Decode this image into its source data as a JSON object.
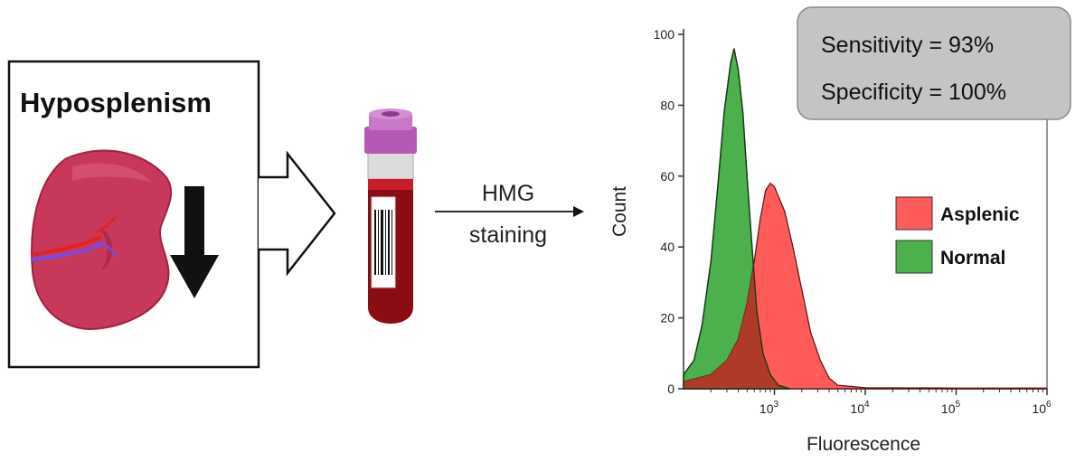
{
  "panel": {
    "title": "Hyposplenism"
  },
  "process": {
    "label_line1": "HMG",
    "label_line2": "staining"
  },
  "stats": {
    "sensitivity": "Sensitivity = 93%",
    "specificity": "Specificity = 100%"
  },
  "colors": {
    "asplenic": "#ff5b5b",
    "normal": "#4cb04c",
    "overlap": "#b03a2a",
    "spleen": "#c8385a",
    "tube_cap": "#b45ab4",
    "blood": "#8b0d14"
  },
  "chart_data": {
    "type": "area",
    "xlabel": "Fluorescence",
    "ylabel": "Count",
    "ylim": [
      0,
      100
    ],
    "yticks": [
      "0",
      "20",
      "40",
      "60",
      "80",
      "100"
    ],
    "xticks": [
      {
        "value": 1000,
        "base": "10",
        "exp": "3"
      },
      {
        "value": 10000,
        "base": "10",
        "exp": "4"
      },
      {
        "value": 100000,
        "base": "10",
        "exp": "5"
      },
      {
        "value": 1000000,
        "base": "10",
        "exp": "6"
      }
    ],
    "xlim_log10": [
      2.0,
      6.0
    ],
    "x_scale": "log",
    "legend_position": "right",
    "series": [
      {
        "name": "Asplenic",
        "color": "#ff5b5b",
        "points": [
          [
            100,
            2
          ],
          [
            200,
            4
          ],
          [
            300,
            8
          ],
          [
            400,
            14
          ],
          [
            500,
            24
          ],
          [
            600,
            36
          ],
          [
            700,
            48
          ],
          [
            800,
            56
          ],
          [
            900,
            58
          ],
          [
            1000,
            57
          ],
          [
            1300,
            50
          ],
          [
            1600,
            40
          ],
          [
            2000,
            28
          ],
          [
            2500,
            16
          ],
          [
            3200,
            8
          ],
          [
            4000,
            3
          ],
          [
            5000,
            1
          ],
          [
            10000,
            0.3
          ],
          [
            100000,
            0.2
          ],
          [
            1000000,
            0.2
          ]
        ]
      },
      {
        "name": "Normal",
        "color": "#4cb04c",
        "points": [
          [
            100,
            4
          ],
          [
            130,
            8
          ],
          [
            160,
            18
          ],
          [
            200,
            36
          ],
          [
            240,
            58
          ],
          [
            280,
            78
          ],
          [
            330,
            92
          ],
          [
            360,
            96
          ],
          [
            400,
            90
          ],
          [
            450,
            78
          ],
          [
            500,
            60
          ],
          [
            560,
            42
          ],
          [
            640,
            22
          ],
          [
            750,
            10
          ],
          [
            900,
            4
          ],
          [
            1100,
            1
          ],
          [
            1500,
            0
          ]
        ]
      }
    ]
  }
}
